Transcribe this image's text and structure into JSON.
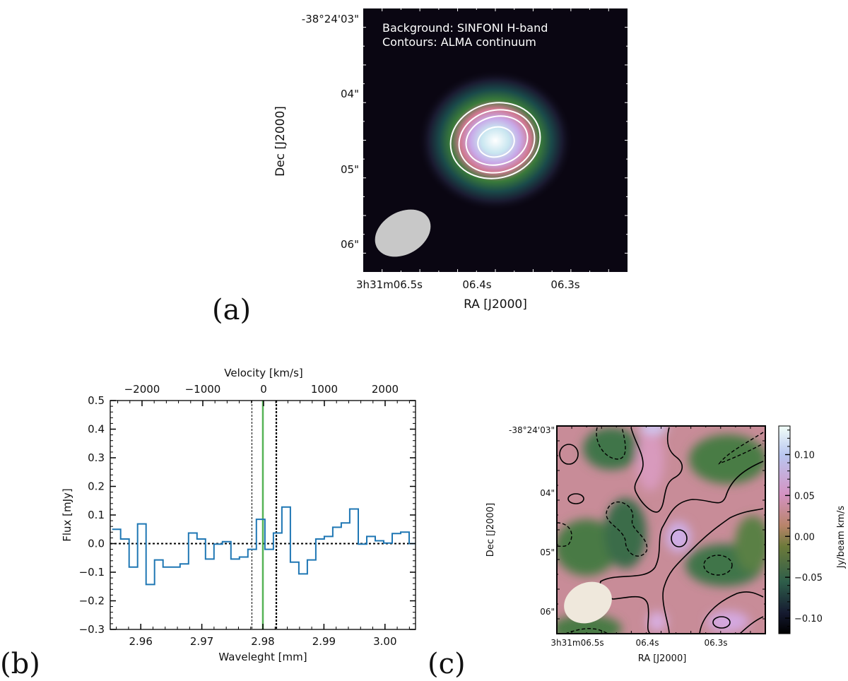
{
  "panel_a": {
    "label": "(a)",
    "annotation_line1": "Background: SINFONI H-band",
    "annotation_line2": "Contours: ALMA continuum",
    "xlabel": "RA [J2000]",
    "ylabel": "Dec [J2000]",
    "xticks": [
      "3h31m06.5s",
      "06.4s",
      "06.3s"
    ],
    "yticks": [
      "-38°24'03\"",
      "04\"",
      "05\"",
      "06\""
    ]
  },
  "panel_c": {
    "label": "(c)",
    "xlabel": "RA [J2000]",
    "ylabel": "Dec [J2000]",
    "xticks": [
      "3h31m06.5s",
      "06.4s",
      "06.3s"
    ],
    "yticks": [
      "-38°24'03\"",
      "04\"",
      "05\"",
      "06\""
    ],
    "colorbar": {
      "label": "Jy/beam km/s",
      "range": [
        -0.119,
        0.135
      ],
      "ticks": [
        "0.10",
        "0.05",
        "0.00",
        "−0.05",
        "−0.10"
      ],
      "tick_values": [
        0.1,
        0.05,
        0.0,
        -0.05,
        -0.1
      ]
    }
  },
  "chart_data": {
    "type": "line",
    "style": "step",
    "panel_label": "(b)",
    "xlabel": "Waveleght [mm]",
    "ylabel": "Flux [mJy]",
    "top_xlabel": "Velocity [km/s]",
    "xlim": [
      2.955,
      3.005
    ],
    "ylim": [
      -0.3,
      0.5
    ],
    "velocity_lim": [
      -2523,
      2500
    ],
    "xticks": [
      2.96,
      2.97,
      2.98,
      2.99,
      3.0
    ],
    "xtick_labels": [
      "2.96",
      "2.97",
      "2.98",
      "2.99",
      "3.00"
    ],
    "yticks": [
      -0.3,
      -0.2,
      -0.1,
      0.0,
      0.1,
      0.2,
      0.3,
      0.4,
      0.5
    ],
    "ytick_labels": [
      "−0.3",
      "−0.2",
      "−0.1",
      "0.0",
      "0.1",
      "0.2",
      "0.3",
      "0.4",
      "0.5"
    ],
    "top_xticks": [
      -2000,
      -1000,
      0,
      1000,
      2000
    ],
    "top_xtick_labels": [
      "−2000",
      "−1000",
      "0",
      "1000",
      "2000"
    ],
    "bin_start": 2.95531,
    "bin_width": 0.00139,
    "series": [
      {
        "name": "spectrum",
        "color": "#1f77b4",
        "values": [
          0.05,
          0.016,
          -0.082,
          0.069,
          -0.143,
          -0.057,
          -0.082,
          -0.082,
          -0.071,
          0.037,
          0.016,
          -0.054,
          -0.002,
          0.007,
          -0.054,
          -0.047,
          -0.02,
          0.085,
          -0.02,
          0.037,
          0.128,
          -0.065,
          -0.106,
          -0.057,
          0.016,
          0.025,
          0.057,
          0.072,
          0.121,
          -0.002,
          0.025,
          0.01,
          0.002,
          0.035,
          0.04,
          0.0
        ]
      }
    ],
    "vlines": [
      {
        "x": 2.9782,
        "style": "dashed-thin",
        "color": "#000000"
      },
      {
        "x": 2.98,
        "style": "solid",
        "color": "#2ca02c"
      },
      {
        "x": 2.9822,
        "style": "dotted-thick",
        "color": "#000000"
      }
    ],
    "hline": {
      "y": 0.0,
      "style": "dotted",
      "color": "#000000"
    }
  }
}
